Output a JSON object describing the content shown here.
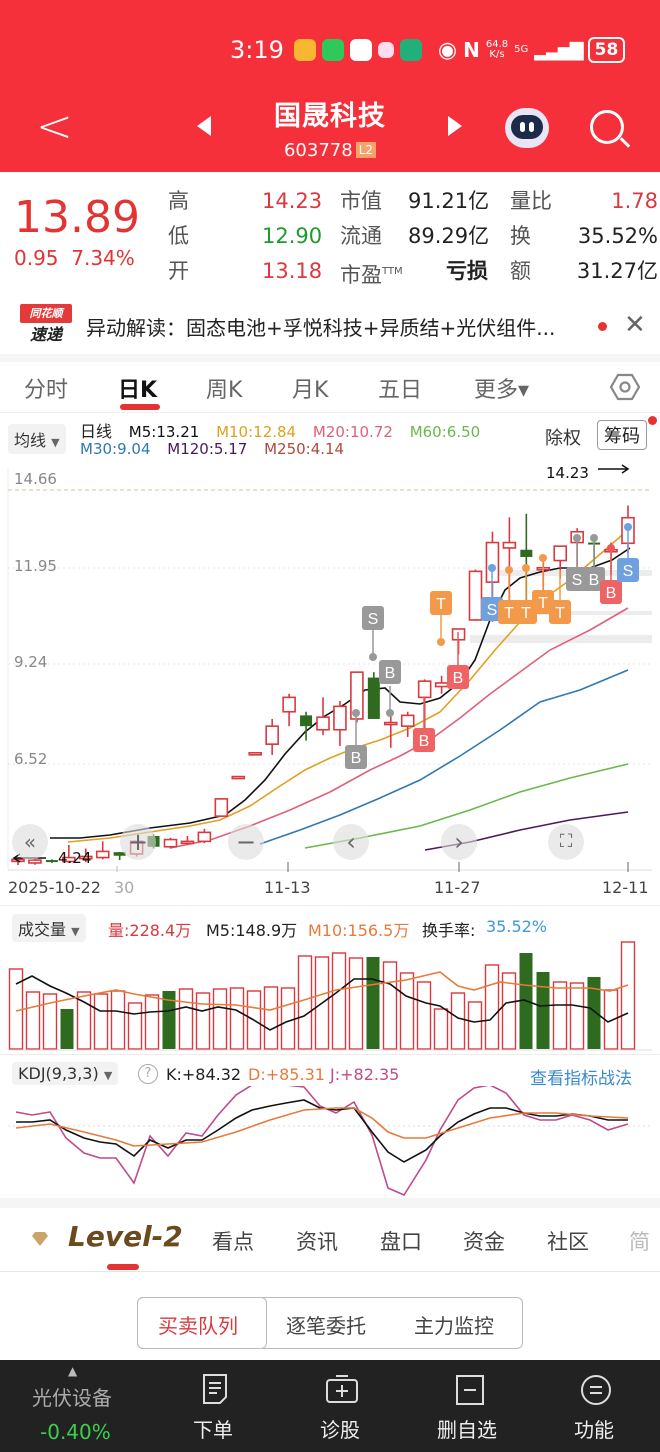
{
  "status_bar": {
    "time": "3:19",
    "net_speed_value": "64.8",
    "net_speed_unit": "K/s",
    "network": "5G",
    "battery": "58"
  },
  "header": {
    "stock_name": "国晟科技",
    "stock_code": "603778",
    "level_badge": "L2"
  },
  "quote": {
    "price": "13.89",
    "change": "0.95",
    "change_pct": "7.34%",
    "rows": [
      {
        "label": "高",
        "value": "14.23",
        "label2": "市值",
        "value2": "91.21亿",
        "label3": "量比",
        "value3": "1.78"
      },
      {
        "label": "低",
        "value": "12.90",
        "label2": "流通",
        "value2": "89.29亿",
        "label3": "换",
        "value3": "35.52%"
      },
      {
        "label": "开",
        "value": "13.18",
        "label2": "市盈TTM",
        "value2": "亏损",
        "label3": "额",
        "value3": "31.27亿"
      }
    ]
  },
  "news": {
    "logo_top": "同花顺",
    "logo_bottom": "速递",
    "text": "异动解读：固态电池+孚悦科技+异质结+光伏组件..."
  },
  "kline_tabs": [
    {
      "label": "分时",
      "active": false
    },
    {
      "label": "日K",
      "active": true
    },
    {
      "label": "周K",
      "active": false
    },
    {
      "label": "月K",
      "active": false
    },
    {
      "label": "五日",
      "active": false
    },
    {
      "label": "更多▾",
      "active": false
    }
  ],
  "ma_bar": {
    "selector": "均线",
    "period": "日线",
    "m5": "M5:13.21",
    "m10": "M10:12.84",
    "m20": "M20:10.72",
    "m60": "M60:6.50",
    "m30": "M30:9.04",
    "m120": "M120:5.17",
    "m250": "M250:4.14",
    "chuquan": "除权",
    "chouma": "筹码"
  },
  "colors": {
    "up": "#d9393f",
    "down": "#2e6b1e",
    "m5": "#111111",
    "m10": "#e0a020",
    "m20": "#e0607a",
    "m30": "#2f78b4",
    "m60": "#6ab84a",
    "m120": "#4a1a5a",
    "m250": "#b04a3a",
    "accent_red": "#f5303a",
    "vol_m10": "#e87a3a",
    "kdj_d": "#e87a3a",
    "kdj_j": "#c04a8a",
    "link_blue": "#3a8ad0"
  },
  "price_axis": {
    "labels": [
      "14.66",
      "11.95",
      "9.24",
      "6.52"
    ],
    "high_marker": "14.23",
    "low_marker": "4.24"
  },
  "date_axis": {
    "labels": [
      "2025-10-22",
      "30",
      "11-13",
      "11-27",
      "12-11"
    ]
  },
  "chart_controls": [
    "«",
    "+",
    "−",
    "‹",
    "›",
    "⛶"
  ],
  "volume": {
    "selector": "成交量",
    "vol": "量:228.4万",
    "m5": "M5:148.9万",
    "m10": "M10:156.5万",
    "turnover_label": "换手率:",
    "turnover_value": "35.52%"
  },
  "kdj": {
    "selector": "KDJ(9,3,3)",
    "k": "K:+84.32",
    "d": "D:+85.31",
    "j": "J:+82.35",
    "link": "查看指标战法"
  },
  "bottom_tabs": {
    "level2": "Level-2",
    "items": [
      "看点",
      "资讯",
      "盘口",
      "资金",
      "社区",
      "简"
    ]
  },
  "segment": [
    "买卖队列",
    "逐笔委托",
    "主力监控"
  ],
  "dock": {
    "sector_name": "光伏设备",
    "sector_change": "-0.40%",
    "items": [
      "下单",
      "诊股",
      "删自选",
      "功能"
    ]
  },
  "chart_data": {
    "type": "candlestick",
    "title": "国晟科技 603778 日K",
    "x_range": [
      "2025-10-22",
      "2025-12-11"
    ],
    "ylim": [
      4.24,
      14.66
    ],
    "y_ticks": [
      14.66,
      11.95,
      9.24,
      6.52
    ],
    "candles": [
      {
        "o": 4.35,
        "h": 4.45,
        "l": 4.24,
        "c": 4.4
      },
      {
        "o": 4.3,
        "h": 4.42,
        "l": 4.25,
        "c": 4.38
      },
      {
        "o": 4.38,
        "h": 4.4,
        "l": 4.3,
        "c": 4.34
      },
      {
        "o": 4.34,
        "h": 4.8,
        "l": 4.3,
        "c": 4.45
      },
      {
        "o": 4.42,
        "h": 4.7,
        "l": 4.32,
        "c": 4.48
      },
      {
        "o": 4.45,
        "h": 4.9,
        "l": 4.4,
        "c": 4.62
      },
      {
        "o": 4.6,
        "h": 4.6,
        "l": 4.38,
        "c": 4.5
      },
      {
        "o": 4.55,
        "h": 4.9,
        "l": 4.48,
        "c": 4.9
      },
      {
        "o": 5.05,
        "h": 5.1,
        "l": 4.7,
        "c": 4.75
      },
      {
        "o": 4.75,
        "h": 5.0,
        "l": 4.7,
        "c": 4.95
      },
      {
        "o": 4.85,
        "h": 5.05,
        "l": 4.8,
        "c": 4.9
      },
      {
        "o": 4.9,
        "h": 5.25,
        "l": 4.85,
        "c": 5.15
      },
      {
        "o": 5.6,
        "h": 6.1,
        "l": 5.6,
        "c": 6.08
      },
      {
        "o": 6.68,
        "h": 6.7,
        "l": 6.65,
        "c": 6.7
      },
      {
        "o": 7.35,
        "h": 7.37,
        "l": 7.33,
        "c": 7.36
      },
      {
        "o": 7.6,
        "h": 8.3,
        "l": 7.3,
        "c": 8.1
      },
      {
        "o": 8.5,
        "h": 9.0,
        "l": 8.1,
        "c": 8.9
      },
      {
        "o": 8.4,
        "h": 8.5,
        "l": 7.7,
        "c": 8.1
      },
      {
        "o": 8.0,
        "h": 8.9,
        "l": 7.85,
        "c": 8.35
      },
      {
        "o": 8.0,
        "h": 8.8,
        "l": 7.55,
        "c": 8.65
      },
      {
        "o": 8.3,
        "h": 9.6,
        "l": 8.2,
        "c": 9.6
      },
      {
        "o": 9.45,
        "h": 9.6,
        "l": 8.3,
        "c": 8.3
      },
      {
        "o": 8.2,
        "h": 8.5,
        "l": 7.5,
        "c": 8.2
      },
      {
        "o": 8.1,
        "h": 8.5,
        "l": 7.8,
        "c": 8.4
      },
      {
        "o": 8.9,
        "h": 9.4,
        "l": 8.0,
        "c": 9.35
      },
      {
        "o": 9.2,
        "h": 9.5,
        "l": 9.0,
        "c": 9.3
      },
      {
        "o": 10.5,
        "h": 10.8,
        "l": 10.1,
        "c": 10.8
      },
      {
        "o": 11.05,
        "h": 12.45,
        "l": 11.03,
        "c": 12.4
      },
      {
        "o": 12.1,
        "h": 13.5,
        "l": 11.0,
        "c": 13.2
      },
      {
        "o": 13.05,
        "h": 13.9,
        "l": 11.0,
        "c": 13.2
      },
      {
        "o": 13.0,
        "h": 14.0,
        "l": 11.0,
        "c": 12.8
      },
      {
        "o": 12.5,
        "h": 12.8,
        "l": 11.55,
        "c": 12.5
      },
      {
        "o": 12.7,
        "h": 13.1,
        "l": 12.2,
        "c": 13.1
      },
      {
        "o": 13.2,
        "h": 13.6,
        "l": 12.2,
        "c": 13.5
      },
      {
        "o": 13.2,
        "h": 13.3,
        "l": 12.2,
        "c": 13.15
      },
      {
        "o": 13.0,
        "h": 13.2,
        "l": 12.3,
        "c": 13.0
      },
      {
        "o": 13.18,
        "h": 14.23,
        "l": 12.9,
        "c": 13.89
      }
    ],
    "ma_values_latest": {
      "M5": 13.21,
      "M10": 12.84,
      "M20": 10.72,
      "M30": 9.04,
      "M60": 6.5,
      "M120": 5.17,
      "M250": 4.14
    },
    "volume_series": {
      "name": "成交量",
      "latest": "228.4万",
      "m5": "148.9万",
      "m10": "156.5万"
    },
    "kdj_latest": {
      "K": 84.32,
      "D": 85.31,
      "J": 82.35
    },
    "annotations": [
      "S",
      "B",
      "T"
    ]
  }
}
